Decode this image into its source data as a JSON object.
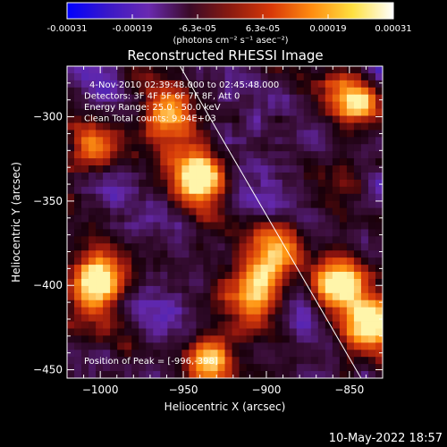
{
  "chart_data": {
    "type": "heatmap",
    "title": "Reconstructed RHESSI Image",
    "xlabel": "Heliocentric X (arcsec)",
    "ylabel": "Heliocentric Y (arcsec)",
    "xlim": [
      -1020,
      -830
    ],
    "ylim": [
      -455,
      -270
    ],
    "x_ticks": [
      -1000,
      -950,
      -900,
      -850
    ],
    "y_ticks": [
      -300,
      -350,
      -400,
      -450
    ],
    "x_tick_labels": [
      "−1000",
      "−950",
      "−900",
      "−850"
    ],
    "y_tick_labels": [
      "−300",
      "−350",
      "−400",
      "−450"
    ],
    "colorbar": {
      "range": [
        -0.00031,
        0.00031
      ],
      "tick_labels": [
        "-0.00031",
        "-0.00019",
        "-6.3e-05",
        "6.3e-05",
        "0.00019",
        "0.00031"
      ],
      "unit_label": "(photons cm⁻² s⁻¹ asec⁻²)",
      "colors": [
        "#0000ff",
        "#3a18c8",
        "#6a2ab0",
        "#3a0a28",
        "#8a1a10",
        "#d83808",
        "#ff8c10",
        "#ffe040",
        "#ffffff"
      ]
    },
    "annotations": [
      "4-Nov-2010 02:39:48.000 to 02:45:48.000",
      "Detectors: 3F 4F 5F 6F 7F 8F, Att 0",
      "Energy Range: 25.0 - 50.0 keV",
      "Clean    Total counts: 9.94E+03"
    ],
    "peak_label": "Position of Peak = [-996,-398]",
    "peak_position": [
      -996,
      -398
    ],
    "limb_line": [
      [
        -952,
        -270
      ],
      [
        -843,
        -455
      ]
    ],
    "bright_sources": [
      {
        "x": -1000,
        "y": -397,
        "level": 1.0
      },
      {
        "x": -940,
        "y": -335,
        "level": 0.95
      },
      {
        "x": -905,
        "y": -402,
        "level": 0.8
      },
      {
        "x": -893,
        "y": -378,
        "level": 0.75
      },
      {
        "x": -855,
        "y": -400,
        "level": 0.85
      },
      {
        "x": -845,
        "y": -290,
        "level": 0.75
      },
      {
        "x": -838,
        "y": -425,
        "level": 0.8
      },
      {
        "x": -1005,
        "y": -320,
        "level": 0.6
      },
      {
        "x": -935,
        "y": -445,
        "level": 0.7
      },
      {
        "x": -960,
        "y": -300,
        "level": 0.6
      }
    ],
    "grid": false
  },
  "footer": {
    "timestamp": "10-May-2022 18:57"
  }
}
